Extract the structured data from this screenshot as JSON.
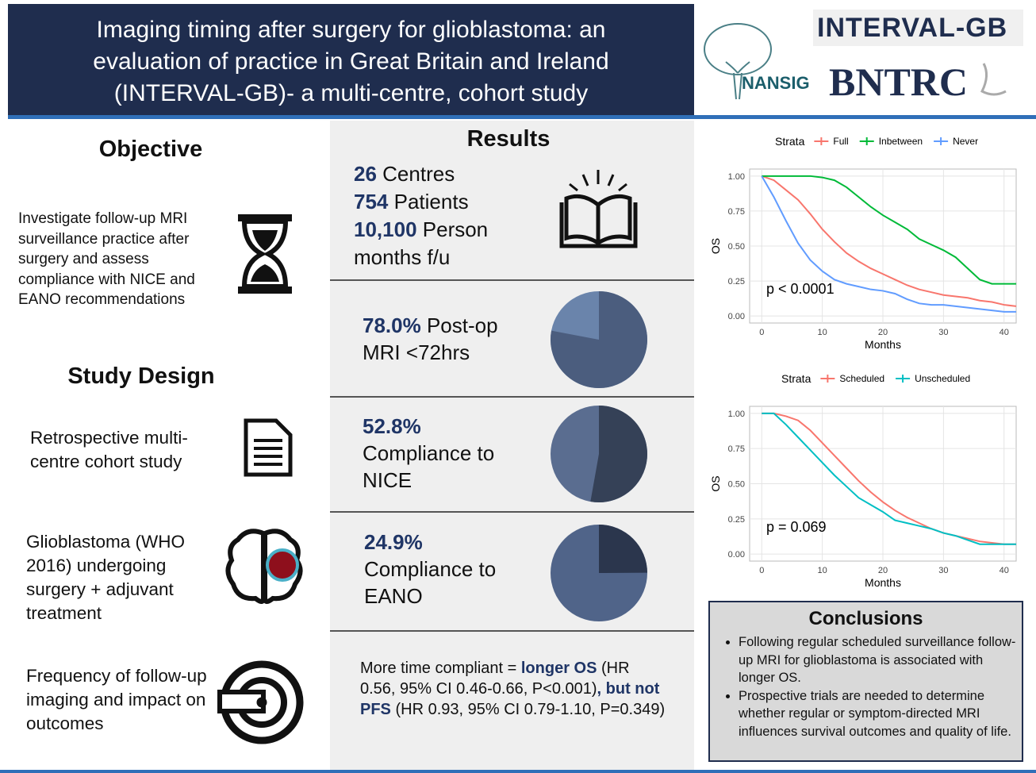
{
  "header": {
    "title_lines": [
      "Imaging timing after surgery for glioblastoma: an",
      "evaluation of practice in Great Britain and Ireland",
      "(INTERVAL-GB)- a multi-centre, cohort study"
    ],
    "logos": [
      "INTERVAL-GB",
      "NANSIG",
      "BNTRC"
    ]
  },
  "objective": {
    "heading": "Objective",
    "text": "Investigate follow-up MRI surveillance practice after surgery and assess compliance with NICE and EANO recommendations"
  },
  "study_design": {
    "heading": "Study Design",
    "items": [
      "Retrospective multi-centre cohort study",
      "Glioblastoma (WHO 2016) undergoing surgery + adjuvant treatment",
      "Frequency of follow-up imaging and impact on outcomes"
    ]
  },
  "results": {
    "heading": "Results",
    "stats": [
      {
        "value": "26",
        "label": "Centres"
      },
      {
        "value": "754",
        "label": "Patients"
      },
      {
        "value": "10,100",
        "label": "Person months f/u"
      }
    ],
    "pies": [
      {
        "value": 78.0,
        "value_label": "78.0%",
        "label": "Post-op MRI <72hrs",
        "color": "#4b5d7e",
        "rest_color": "#6a84ab"
      },
      {
        "value": 52.8,
        "value_label": "52.8%",
        "label": "Compliance to NICE",
        "color": "#354157",
        "rest_color": "#5a6d90"
      },
      {
        "value": 24.9,
        "value_label": "24.9%",
        "label": "Compliance to EANO",
        "color": "#2b364d",
        "rest_color": "#506489"
      }
    ],
    "finding": [
      "More time compliant = ",
      "longer OS",
      " (HR 0.56, 95% CI 0.46-0.66, P<0.001)",
      ", but not PFS",
      " (HR 0.93, 95% CI 0.79-1.10, P=0.349)"
    ]
  },
  "chart_data": [
    {
      "type": "line",
      "legend_title": "Strata",
      "xlabel": "Months",
      "ylabel": "OS",
      "annotation": "p < 0.0001",
      "x": [
        0,
        2,
        4,
        6,
        8,
        10,
        12,
        14,
        16,
        18,
        20,
        22,
        24,
        26,
        28,
        30,
        32,
        34,
        36,
        38,
        40,
        42
      ],
      "series": [
        {
          "name": "Full",
          "color": "#f8766d",
          "values": [
            1.0,
            0.97,
            0.9,
            0.83,
            0.73,
            0.62,
            0.53,
            0.45,
            0.39,
            0.34,
            0.3,
            0.26,
            0.22,
            0.19,
            0.17,
            0.15,
            0.14,
            0.13,
            0.11,
            0.1,
            0.08,
            0.07
          ]
        },
        {
          "name": "Inbetween",
          "color": "#00ba38",
          "values": [
            1.0,
            1.0,
            1.0,
            1.0,
            1.0,
            0.99,
            0.97,
            0.92,
            0.85,
            0.78,
            0.72,
            0.67,
            0.62,
            0.55,
            0.51,
            0.47,
            0.42,
            0.34,
            0.26,
            0.23,
            0.23,
            0.23
          ]
        },
        {
          "name": "Never",
          "color": "#619cff",
          "values": [
            1.0,
            0.85,
            0.68,
            0.52,
            0.4,
            0.32,
            0.26,
            0.23,
            0.21,
            0.19,
            0.18,
            0.16,
            0.12,
            0.09,
            0.08,
            0.08,
            0.07,
            0.06,
            0.05,
            0.04,
            0.03,
            0.03
          ]
        }
      ],
      "xlim": [
        -2,
        42
      ],
      "ylim": [
        -0.05,
        1.05
      ],
      "xticks": [
        0,
        10,
        20,
        30,
        40
      ],
      "yticks": [
        {
          "value": 0,
          "label": "0.00"
        },
        {
          "value": 0.25,
          "label": "0.25"
        },
        {
          "value": 0.5,
          "label": "0.50"
        },
        {
          "value": 0.75,
          "label": "0.75"
        },
        {
          "value": 1,
          "label": "1.00"
        }
      ],
      "grid": true
    },
    {
      "type": "line",
      "legend_title": "Strata",
      "xlabel": "Months",
      "ylabel": "OS",
      "annotation": "p = 0.069",
      "x": [
        0,
        2,
        4,
        6,
        8,
        10,
        12,
        14,
        16,
        18,
        20,
        22,
        24,
        26,
        28,
        30,
        32,
        34,
        36,
        38,
        40,
        42
      ],
      "series": [
        {
          "name": "Scheduled",
          "color": "#f8766d",
          "values": [
            1.0,
            1.0,
            0.98,
            0.95,
            0.88,
            0.79,
            0.7,
            0.61,
            0.52,
            0.44,
            0.37,
            0.31,
            0.26,
            0.22,
            0.18,
            0.15,
            0.13,
            0.11,
            0.09,
            0.08,
            0.07,
            0.07
          ]
        },
        {
          "name": "Unscheduled",
          "color": "#00bfc4",
          "values": [
            1.0,
            1.0,
            0.92,
            0.83,
            0.74,
            0.65,
            0.56,
            0.48,
            0.4,
            0.35,
            0.3,
            0.24,
            0.22,
            0.2,
            0.18,
            0.15,
            0.13,
            0.1,
            0.07,
            0.07,
            0.07,
            0.07
          ]
        }
      ],
      "xlim": [
        -2,
        42
      ],
      "ylim": [
        -0.05,
        1.05
      ],
      "xticks": [
        0,
        10,
        20,
        30,
        40
      ],
      "yticks": [
        {
          "value": 0,
          "label": "0.00"
        },
        {
          "value": 0.25,
          "label": "0.25"
        },
        {
          "value": 0.5,
          "label": "0.50"
        },
        {
          "value": 0.75,
          "label": "0.75"
        },
        {
          "value": 1,
          "label": "1.00"
        }
      ],
      "grid": true
    }
  ],
  "conclusions": {
    "heading": "Conclusions",
    "bullets": [
      "Following regular scheduled surveillance follow-up MRI for glioblastoma is associated with longer OS.",
      "Prospective trials are needed to determine whether regular or symptom-directed MRI influences survival outcomes and quality of life."
    ]
  }
}
